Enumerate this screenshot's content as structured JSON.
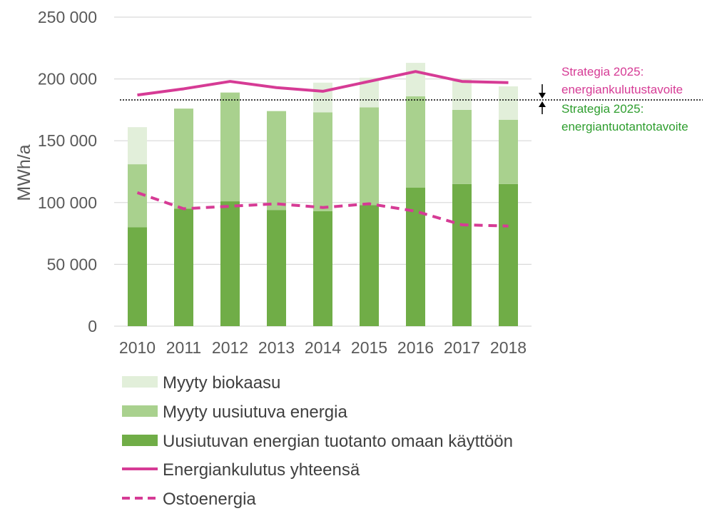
{
  "chart_data": {
    "type": "bar",
    "title": "",
    "xlabel": "",
    "ylabel": "MWh/a",
    "ylim": [
      0,
      250000
    ],
    "y_ticks": [
      "0",
      "50 000",
      "100 000",
      "150 000",
      "200 000",
      "250 000"
    ],
    "y_tick_values": [
      0,
      50000,
      100000,
      150000,
      200000,
      250000
    ],
    "grid": true,
    "legend_position": "bottom",
    "categories": [
      "2010",
      "2011",
      "2012",
      "2013",
      "2014",
      "2015",
      "2016",
      "2017",
      "2018"
    ],
    "stacked_bars": [
      {
        "name": "Uusiutuvan energian tuotanto omaan käyttöön",
        "color": "#70ad47",
        "values": [
          80000,
          95000,
          101000,
          94000,
          93000,
          98000,
          112000,
          115000,
          115000
        ]
      },
      {
        "name": "Myyty uusiutuva energia",
        "color": "#a9d18e",
        "values": [
          51000,
          81000,
          88000,
          80000,
          80000,
          79000,
          74000,
          60000,
          52000
        ]
      },
      {
        "name": "Myyty biokaasu",
        "color": "#e2efda",
        "values": [
          30000,
          0,
          0,
          0,
          24000,
          24000,
          27000,
          25000,
          27000
        ]
      }
    ],
    "lines": [
      {
        "name": "Energiankulutus yhteensä",
        "color": "#d63b95",
        "style": "solid",
        "values": [
          187000,
          192000,
          198000,
          193000,
          190000,
          198000,
          206000,
          198000,
          197000
        ]
      },
      {
        "name": "Ostoenergia",
        "color": "#d63b95",
        "style": "dashed",
        "values": [
          108000,
          95000,
          97000,
          99000,
          96000,
          99000,
          93000,
          82000,
          81000
        ]
      }
    ],
    "reference_line": {
      "value": 183000,
      "style": "dotted",
      "color": "#000000"
    },
    "annotations": [
      {
        "lines": [
          "Strategia 2025:",
          "energiankulutustavoite"
        ],
        "color": "#d63b95",
        "direction": "down"
      },
      {
        "lines": [
          "Strategia 2025:",
          "energiantuotantotavoite"
        ],
        "color": "#2e9e2e",
        "direction": "up"
      }
    ],
    "legend": [
      {
        "label": "Myyty biokaasu",
        "kind": "box",
        "color": "#e2efda"
      },
      {
        "label": "Myyty uusiutuva energia",
        "kind": "box",
        "color": "#a9d18e"
      },
      {
        "label": "Uusiutuvan energian tuotanto omaan käyttöön",
        "kind": "box",
        "color": "#70ad47"
      },
      {
        "label": "Energiankulutus yhteensä",
        "kind": "line",
        "color": "#d63b95"
      },
      {
        "label": "Ostoenergia",
        "kind": "dash",
        "color": "#d63b95"
      }
    ]
  }
}
